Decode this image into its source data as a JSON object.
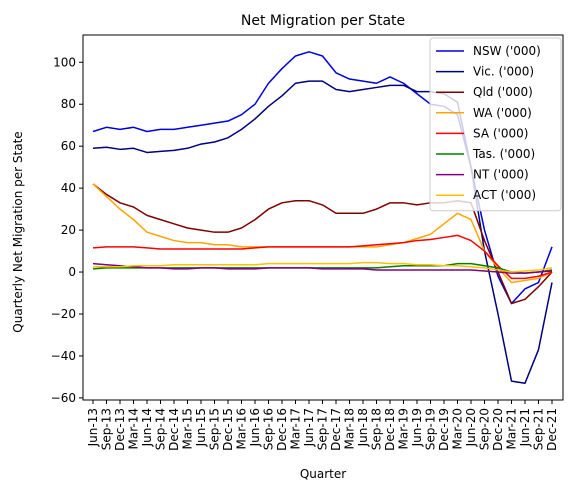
{
  "chart_data": {
    "type": "line",
    "title": "Net Migration per State",
    "xlabel": "Quarter",
    "ylabel": "Quarterly Net Migration per State",
    "ylim": [
      -61,
      113
    ],
    "yticks": [
      -60,
      -40,
      -20,
      0,
      20,
      40,
      60,
      80,
      100
    ],
    "grid": false,
    "legend_position": "top-right",
    "x": [
      "Jun-13",
      "Sep-13",
      "Dec-13",
      "Mar-14",
      "Jun-14",
      "Sep-14",
      "Dec-14",
      "Mar-15",
      "Jun-15",
      "Sep-15",
      "Dec-15",
      "Mar-16",
      "Jun-16",
      "Sep-16",
      "Dec-16",
      "Mar-17",
      "Jun-17",
      "Sep-17",
      "Dec-17",
      "Mar-18",
      "Jun-18",
      "Sep-18",
      "Dec-18",
      "Mar-19",
      "Jun-19",
      "Sep-19",
      "Dec-19",
      "Mar-20",
      "Jun-20",
      "Sep-20",
      "Dec-20",
      "Mar-21",
      "Jun-21",
      "Sep-21",
      "Dec-21"
    ],
    "xtick_labels": [
      "Jun-13",
      "Sep-13",
      "Dec-13",
      "Mar-14",
      "Jun-14",
      "Sep-14",
      "Dec-14",
      "Mar-15",
      "Jun-15",
      "Sep-15",
      "Dec-15",
      "Mar-16",
      "Jun-16",
      "Sep-16",
      "Dec-16",
      "Mar-17",
      "Jun-17",
      "Sep-17",
      "Dec-17",
      "Mar-18",
      "Jun-18",
      "Sep-18",
      "Dec-18",
      "Mar-19",
      "Jun-19",
      "Sep-19",
      "Dec-19",
      "Mar-20",
      "Jun-20",
      "Sep-20",
      "Dec-20",
      "Mar-21",
      "Jun-21",
      "Sep-21",
      "Dec-21"
    ],
    "series": [
      {
        "name": "NSW ('000)",
        "color": "#0000dd",
        "values": [
          67,
          69,
          68,
          69,
          67,
          68,
          68,
          69,
          70,
          71,
          72,
          75,
          80,
          90,
          97,
          103,
          105,
          103,
          95,
          92,
          91,
          90,
          93,
          90,
          85,
          80,
          79,
          75,
          50,
          20,
          -2,
          -15,
          -8,
          -5,
          12
        ]
      },
      {
        "name": "Vic. ('000)",
        "color": "#00007f",
        "values": [
          59,
          59.5,
          58.5,
          59,
          57,
          57.5,
          58,
          59,
          61,
          62,
          64,
          68,
          73,
          79,
          84,
          90,
          91,
          91,
          87,
          86,
          87,
          88,
          89,
          89,
          86,
          86,
          85,
          81,
          50,
          10,
          -20,
          -52,
          -53,
          -37,
          -5
        ]
      },
      {
        "name": "Qld ('000)",
        "color": "#7f0000",
        "values": [
          42,
          37,
          33,
          31,
          27,
          25,
          23,
          21,
          20,
          19,
          19,
          21,
          25,
          30,
          33,
          34,
          34,
          32,
          28,
          28,
          28,
          30,
          33,
          33,
          32,
          33,
          33,
          34,
          33,
          15,
          0,
          -15,
          -13,
          -7,
          0
        ]
      },
      {
        "name": "WA ('000)",
        "color": "#ffa500",
        "values": [
          42,
          36,
          30,
          25,
          19,
          17,
          15,
          14,
          14,
          13,
          13,
          12,
          12,
          12,
          12,
          12,
          12,
          12,
          12,
          12,
          12,
          12,
          13,
          14,
          16,
          18,
          23,
          28,
          25,
          10,
          2,
          -5,
          -4,
          -3,
          0
        ]
      },
      {
        "name": "SA ('000)",
        "color": "#ff0000",
        "values": [
          11.5,
          12,
          12,
          12,
          11.5,
          11,
          11,
          11,
          11,
          11,
          11,
          11,
          11.5,
          12,
          12,
          12,
          12,
          12,
          12,
          12,
          12.5,
          13,
          13.5,
          14,
          15,
          15.5,
          16.5,
          17.5,
          15,
          10,
          3,
          -3,
          -3,
          -2,
          0
        ]
      },
      {
        "name": "Tas. ('000)",
        "color": "#008000",
        "values": [
          1.5,
          2,
          2,
          2,
          2,
          2,
          2,
          2,
          2,
          2,
          2,
          2,
          2,
          2,
          2,
          2,
          2,
          2,
          2,
          2,
          2,
          2,
          2.5,
          3,
          3,
          3,
          3,
          4,
          4,
          3,
          2,
          0,
          -0.5,
          0,
          1
        ]
      },
      {
        "name": "NT ('000)",
        "color": "#800080",
        "values": [
          4,
          3.5,
          3,
          2.5,
          2,
          2,
          1.5,
          1.5,
          2,
          2,
          1.5,
          1.5,
          1.5,
          2,
          2,
          2,
          2,
          1.5,
          1.5,
          1.5,
          1.5,
          1,
          1,
          1,
          1,
          1,
          1,
          1,
          1,
          0.5,
          0,
          -0.5,
          -0.5,
          0,
          0.5
        ]
      },
      {
        "name": "ACT ('000)",
        "color": "#ffc000",
        "values": [
          2.5,
          2.5,
          2.5,
          3,
          3,
          3,
          3.5,
          3.5,
          3.5,
          3.5,
          3.5,
          3.5,
          3.5,
          4,
          4,
          4,
          4,
          4,
          4,
          4,
          4.5,
          4.5,
          4,
          4,
          3.5,
          3.5,
          3,
          3,
          2.5,
          2,
          1,
          0,
          0.5,
          1,
          2
        ]
      }
    ]
  }
}
